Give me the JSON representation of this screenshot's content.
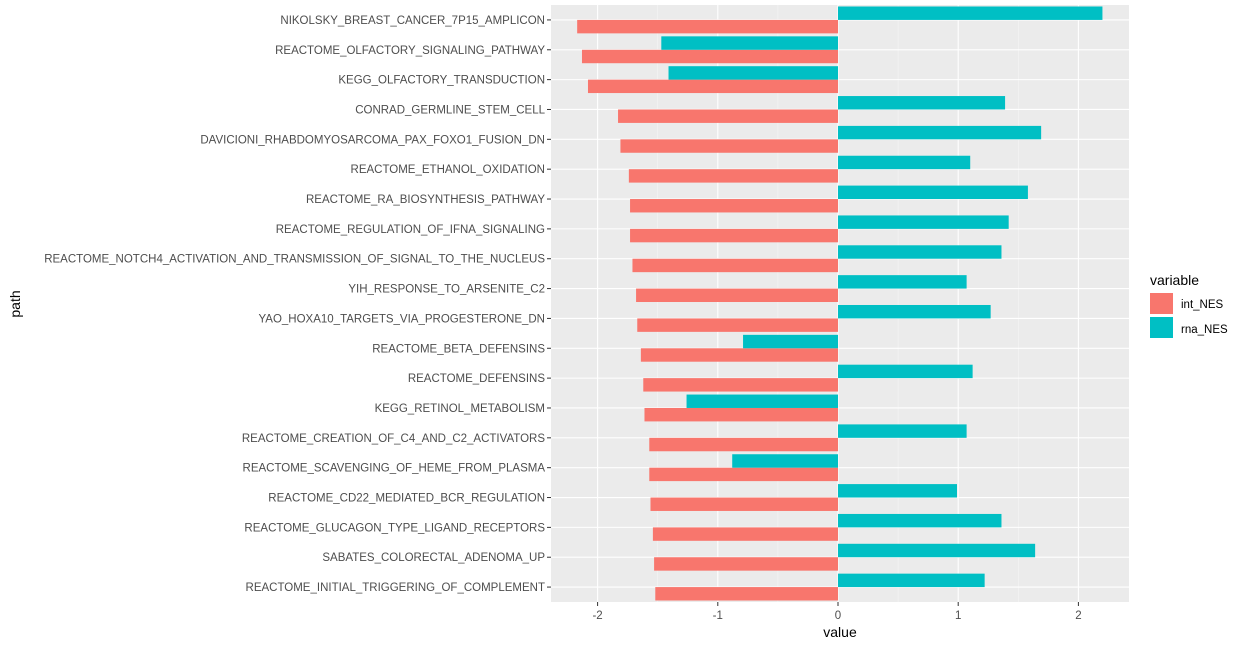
{
  "chart_data": {
    "type": "bar",
    "orientation": "horizontal",
    "xlabel": "value",
    "ylabel": "path",
    "xlim": [
      -2.4,
      2.4
    ],
    "x_ticks": [
      -2,
      -1,
      0,
      1,
      2
    ],
    "x_tick_labels": [
      "-2",
      "-1",
      "0",
      "1",
      "2"
    ],
    "grid": true,
    "legend": {
      "title": "variable",
      "position": "right"
    },
    "categories": [
      "NIKOLSKY_BREAST_CANCER_7P15_AMPLICON",
      "REACTOME_OLFACTORY_SIGNALING_PATHWAY",
      "KEGG_OLFACTORY_TRANSDUCTION",
      "CONRAD_GERMLINE_STEM_CELL",
      "DAVICIONI_RHABDOMYOSARCOMA_PAX_FOXO1_FUSION_DN",
      "REACTOME_ETHANOL_OXIDATION",
      "REACTOME_RA_BIOSYNTHESIS_PATHWAY",
      "REACTOME_REGULATION_OF_IFNA_SIGNALING",
      "REACTOME_NOTCH4_ACTIVATION_AND_TRANSMISSION_OF_SIGNAL_TO_THE_NUCLEUS",
      "YIH_RESPONSE_TO_ARSENITE_C2",
      "YAO_HOXA10_TARGETS_VIA_PROGESTERONE_DN",
      "REACTOME_BETA_DEFENSINS",
      "REACTOME_DEFENSINS",
      "KEGG_RETINOL_METABOLISM",
      "REACTOME_CREATION_OF_C4_AND_C2_ACTIVATORS",
      "REACTOME_SCAVENGING_OF_HEME_FROM_PLASMA",
      "REACTOME_CD22_MEDIATED_BCR_REGULATION",
      "REACTOME_GLUCAGON_TYPE_LIGAND_RECEPTORS",
      "SABATES_COLORECTAL_ADENOMA_UP",
      "REACTOME_INITIAL_TRIGGERING_OF_COMPLEMENT"
    ],
    "series": [
      {
        "name": "int_NES",
        "color": "#F8766D",
        "values": [
          -2.17,
          -2.13,
          -2.08,
          -1.83,
          -1.81,
          -1.74,
          -1.73,
          -1.73,
          -1.71,
          -1.68,
          -1.67,
          -1.64,
          -1.62,
          -1.61,
          -1.57,
          -1.57,
          -1.56,
          -1.54,
          -1.53,
          -1.52
        ]
      },
      {
        "name": "rna_NES",
        "color": "#00BFC4",
        "values": [
          2.2,
          -1.47,
          -1.41,
          1.39,
          1.69,
          1.1,
          1.58,
          1.42,
          1.36,
          1.07,
          1.27,
          -0.79,
          1.12,
          -1.26,
          1.07,
          -0.88,
          0.99,
          1.36,
          1.64,
          1.22
        ]
      }
    ]
  }
}
